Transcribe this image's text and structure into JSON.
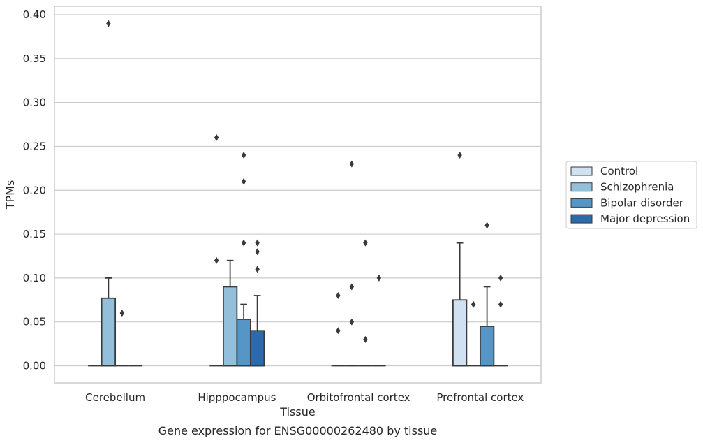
{
  "chart_data": {
    "type": "box",
    "title": "",
    "caption": "Gene expression for ENSG00000262480 by tissue",
    "xlabel": "Tissue",
    "ylabel": "TPMs",
    "ylim": [
      -0.019,
      0.41
    ],
    "yticks": [
      "0.00",
      "0.05",
      "0.10",
      "0.15",
      "0.20",
      "0.25",
      "0.30",
      "0.35",
      "0.40"
    ],
    "ytick_values": [
      0,
      0.05,
      0.1,
      0.15,
      0.2,
      0.25,
      0.3,
      0.35,
      0.4
    ],
    "grid": true,
    "legend_position": "right",
    "categories": [
      "Cerebellum",
      "Hipppocampus",
      "Orbitofrontal cortex",
      "Prefrontal cortex"
    ],
    "series": [
      {
        "name": "Control",
        "color": "#d0e1f2",
        "boxes": [
          {
            "q1": 0,
            "median": 0,
            "q3": 0,
            "whisker_low": 0,
            "whisker_high": 0,
            "outliers": []
          },
          {
            "q1": 0,
            "median": 0,
            "q3": 0,
            "whisker_low": 0,
            "whisker_high": 0,
            "outliers": [
              0.12,
              0.26
            ]
          },
          {
            "q1": 0,
            "median": 0,
            "q3": 0,
            "whisker_low": 0,
            "whisker_high": 0,
            "outliers": [
              0.04,
              0.08
            ]
          },
          {
            "q1": 0,
            "median": 0,
            "q3": 0.075,
            "whisker_low": 0,
            "whisker_high": 0.14,
            "outliers": [
              0.24
            ]
          }
        ]
      },
      {
        "name": "Schizophrenia",
        "color": "#94bfdb",
        "boxes": [
          {
            "q1": 0,
            "median": 0,
            "q3": 0.077,
            "whisker_low": 0,
            "whisker_high": 0.1,
            "outliers": [
              0.39
            ]
          },
          {
            "q1": 0,
            "median": 0,
            "q3": 0.09,
            "whisker_low": 0,
            "whisker_high": 0.12,
            "outliers": []
          },
          {
            "q1": 0,
            "median": 0,
            "q3": 0,
            "whisker_low": 0,
            "whisker_high": 0,
            "outliers": [
              0.05,
              0.09,
              0.23
            ]
          },
          {
            "q1": 0,
            "median": 0,
            "q3": 0,
            "whisker_low": 0,
            "whisker_high": 0,
            "outliers": [
              0.07
            ]
          }
        ]
      },
      {
        "name": "Bipolar disorder",
        "color": "#5596c6",
        "boxes": [
          {
            "q1": 0,
            "median": 0,
            "q3": 0,
            "whisker_low": 0,
            "whisker_high": 0,
            "outliers": [
              0.06
            ]
          },
          {
            "q1": 0,
            "median": 0,
            "q3": 0.053,
            "whisker_low": 0,
            "whisker_high": 0.07,
            "outliers": [
              0.14,
              0.21,
              0.24
            ]
          },
          {
            "q1": 0,
            "median": 0,
            "q3": 0,
            "whisker_low": 0,
            "whisker_high": 0,
            "outliers": [
              0.03,
              0.14
            ]
          },
          {
            "q1": 0,
            "median": 0,
            "q3": 0.045,
            "whisker_low": 0,
            "whisker_high": 0.09,
            "outliers": [
              0.16
            ]
          }
        ]
      },
      {
        "name": "Major depression",
        "color": "#2a6aad",
        "boxes": [
          {
            "q1": 0,
            "median": 0,
            "q3": 0,
            "whisker_low": 0,
            "whisker_high": 0,
            "outliers": []
          },
          {
            "q1": 0,
            "median": 0,
            "q3": 0.04,
            "whisker_low": 0,
            "whisker_high": 0.08,
            "outliers": [
              0.11,
              0.13,
              0.14
            ]
          },
          {
            "q1": 0,
            "median": 0,
            "q3": 0,
            "whisker_low": 0,
            "whisker_high": 0,
            "outliers": [
              0.1
            ]
          },
          {
            "q1": 0,
            "median": 0,
            "q3": 0,
            "whisker_low": 0,
            "whisker_high": 0,
            "outliers": [
              0.07,
              0.1
            ]
          }
        ]
      }
    ]
  }
}
